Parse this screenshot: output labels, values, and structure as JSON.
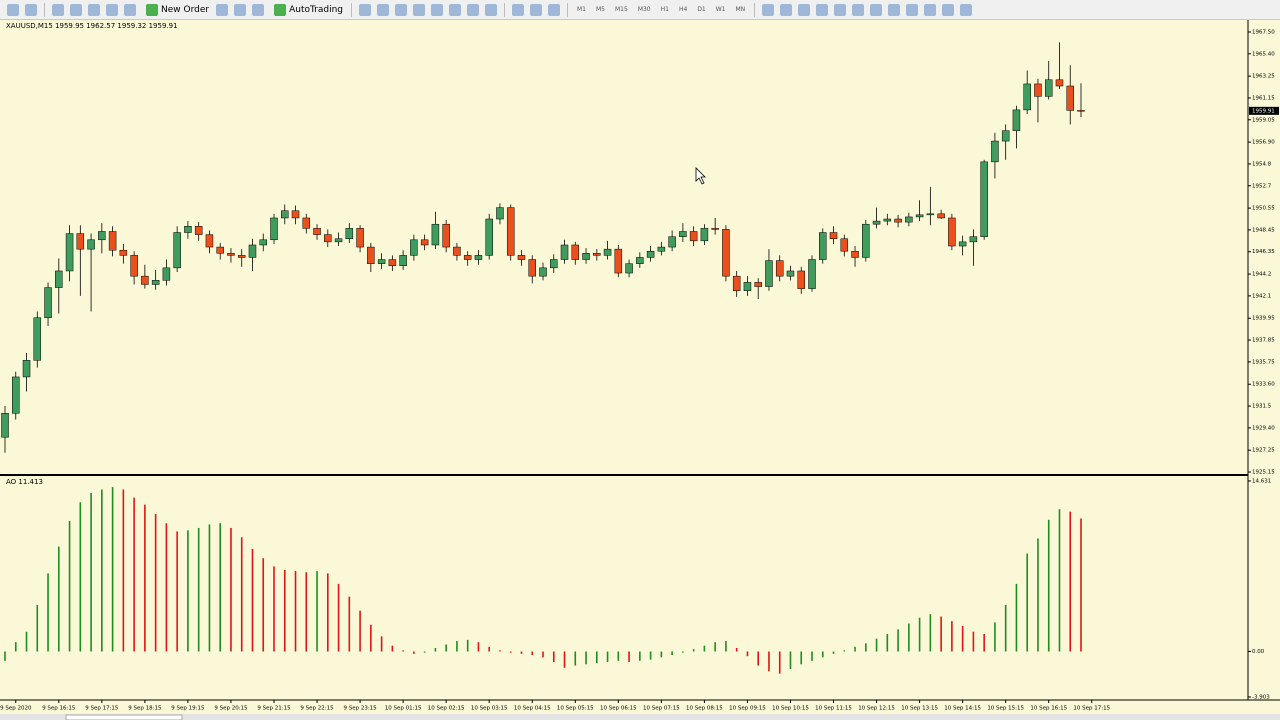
{
  "toolbar": {
    "buttons": [
      "New Order",
      "AutoTrading"
    ],
    "timeframes": [
      "M1",
      "M5",
      "M15",
      "M30",
      "H1",
      "H4",
      "D1",
      "W1",
      "MN"
    ]
  },
  "time_labels": [
    "9 Sep 2020",
    "9 Sep 16:15",
    "9 Sep 17:15",
    "9 Sep 18:15",
    "9 Sep 19:15",
    "9 Sep 20:15",
    "9 Sep 21:15",
    "9 Sep 22:15",
    "9 Sep 23:15",
    "10 Sep 01:15",
    "10 Sep 02:15",
    "10 Sep 03:15",
    "10 Sep 04:15",
    "10 Sep 05:15",
    "10 Sep 06:15",
    "10 Sep 07:15",
    "10 Sep 08:15",
    "10 Sep 09:15",
    "10 Sep 10:15",
    "10 Sep 11:15",
    "10 Sep 12:15",
    "10 Sep 13:15",
    "10 Sep 14:15",
    "10 Sep 15:15",
    "10 Sep 16:15",
    "10 Sep 17:15"
  ],
  "chart_data": [
    {
      "type": "candlestick",
      "title": "XAUUSD,M15  1959.95 1962.57 1959.32 1959.91",
      "up_color": "#3f9b5e",
      "down_color": "#ea4f1c",
      "ylim": [
        1924.96,
        1968.46
      ],
      "yticks": [
        {
          "value": 1967.5,
          "label": "1967.50"
        },
        {
          "value": 1965.4,
          "label": "1965.40"
        },
        1963.25,
        1961.15,
        1959.05,
        {
          "value": 1956.9,
          "label": "1956.90"
        },
        1954.8,
        1952.7,
        1950.55,
        1948.45,
        1946.35,
        1944.2,
        1942.1,
        1939.95,
        1937.85,
        1935.75,
        {
          "value": 1933.6,
          "label": "1933.60"
        },
        1931.5,
        {
          "value": 1929.4,
          "label": "1929.40"
        },
        1927.25,
        1925.15
      ],
      "ohlc": [
        [
          1928.5,
          1931.5,
          1927.0,
          1930.8
        ],
        [
          1930.8,
          1934.8,
          1930.2,
          1934.3
        ],
        [
          1934.3,
          1936.6,
          1932.9,
          1935.9
        ],
        [
          1935.9,
          1940.6,
          1935.2,
          1940.0
        ],
        [
          1940.0,
          1943.4,
          1939.2,
          1942.9
        ],
        [
          1942.9,
          1945.7,
          1940.4,
          1944.5
        ],
        [
          1944.5,
          1948.9,
          1943.5,
          1948.1
        ],
        [
          1948.1,
          1948.9,
          1942.1,
          1946.6
        ],
        [
          1946.6,
          1948.1,
          1940.6,
          1947.5
        ],
        [
          1947.5,
          1949.1,
          1946.2,
          1948.3
        ],
        [
          1948.3,
          1948.8,
          1945.9,
          1946.5
        ],
        [
          1946.5,
          1947.1,
          1945.2,
          1946.0
        ],
        [
          1946.0,
          1946.4,
          1943.2,
          1944.0
        ],
        [
          1944.0,
          1945.1,
          1942.8,
          1943.2
        ],
        [
          1943.2,
          1944.6,
          1942.7,
          1943.6
        ],
        [
          1943.6,
          1945.6,
          1943.1,
          1944.8
        ],
        [
          1944.8,
          1948.8,
          1944.4,
          1948.2
        ],
        [
          1948.2,
          1949.3,
          1947.6,
          1948.8
        ],
        [
          1948.8,
          1949.2,
          1947.4,
          1948.0
        ],
        [
          1948.0,
          1948.4,
          1946.2,
          1946.8
        ],
        [
          1946.8,
          1947.2,
          1945.6,
          1946.2
        ],
        [
          1946.2,
          1946.7,
          1945.3,
          1946.0
        ],
        [
          1946.0,
          1946.6,
          1944.9,
          1945.8
        ],
        [
          1945.8,
          1947.6,
          1944.5,
          1947.0
        ],
        [
          1947.0,
          1948.1,
          1946.4,
          1947.5
        ],
        [
          1947.5,
          1950.0,
          1947.1,
          1949.6
        ],
        [
          1949.6,
          1950.9,
          1949.0,
          1950.3
        ],
        [
          1950.3,
          1950.8,
          1949.0,
          1949.6
        ],
        [
          1949.6,
          1950.0,
          1948.1,
          1948.6
        ],
        [
          1948.6,
          1949.0,
          1947.5,
          1948.0
        ],
        [
          1948.0,
          1948.5,
          1946.8,
          1947.3
        ],
        [
          1947.3,
          1948.2,
          1946.9,
          1947.6
        ],
        [
          1947.6,
          1949.1,
          1947.2,
          1948.6
        ],
        [
          1948.6,
          1948.9,
          1946.3,
          1946.8
        ],
        [
          1946.8,
          1947.2,
          1944.4,
          1945.2
        ],
        [
          1945.2,
          1946.2,
          1944.7,
          1945.6
        ],
        [
          1945.6,
          1946.0,
          1944.5,
          1945.0
        ],
        [
          1945.0,
          1946.5,
          1944.6,
          1946.0
        ],
        [
          1946.0,
          1948.0,
          1945.5,
          1947.5
        ],
        [
          1947.5,
          1948.0,
          1946.5,
          1947.0
        ],
        [
          1947.0,
          1950.2,
          1946.6,
          1949.0
        ],
        [
          1949.0,
          1949.4,
          1946.3,
          1946.8
        ],
        [
          1946.8,
          1947.2,
          1945.5,
          1946.0
        ],
        [
          1946.0,
          1946.4,
          1945.0,
          1945.6
        ],
        [
          1945.6,
          1946.5,
          1945.1,
          1946.0
        ],
        [
          1946.0,
          1950.0,
          1945.6,
          1949.5
        ],
        [
          1949.5,
          1951.0,
          1949.0,
          1950.6
        ],
        [
          1950.6,
          1950.9,
          1945.5,
          1946.0
        ],
        [
          1946.0,
          1946.5,
          1945.0,
          1945.6
        ],
        [
          1945.6,
          1946.0,
          1943.3,
          1944.0
        ],
        [
          1944.0,
          1945.3,
          1943.6,
          1944.8
        ],
        [
          1944.8,
          1946.1,
          1944.3,
          1945.6
        ],
        [
          1945.6,
          1947.5,
          1945.2,
          1947.0
        ],
        [
          1947.0,
          1947.3,
          1945.1,
          1945.6
        ],
        [
          1945.6,
          1946.7,
          1945.2,
          1946.2
        ],
        [
          1946.2,
          1946.6,
          1945.5,
          1946.0
        ],
        [
          1946.0,
          1947.4,
          1945.6,
          1946.6
        ],
        [
          1946.6,
          1947.0,
          1943.9,
          1944.3
        ],
        [
          1944.3,
          1945.6,
          1943.9,
          1945.2
        ],
        [
          1945.2,
          1946.3,
          1944.8,
          1945.8
        ],
        [
          1945.8,
          1946.9,
          1945.4,
          1946.4
        ],
        [
          1946.4,
          1947.3,
          1946.0,
          1946.8
        ],
        [
          1946.8,
          1948.4,
          1946.4,
          1947.8
        ],
        [
          1947.8,
          1949.1,
          1947.3,
          1948.3
        ],
        [
          1948.3,
          1948.8,
          1946.9,
          1947.4
        ],
        [
          1947.4,
          1949.0,
          1947.0,
          1948.6
        ],
        [
          1948.6,
          1949.6,
          1948.0,
          1948.5
        ],
        [
          1948.5,
          1948.9,
          1943.5,
          1944.0
        ],
        [
          1944.0,
          1944.5,
          1942.0,
          1942.6
        ],
        [
          1942.6,
          1944.0,
          1942.1,
          1943.4
        ],
        [
          1943.4,
          1943.8,
          1941.8,
          1943.0
        ],
        [
          1943.0,
          1946.6,
          1942.6,
          1945.5
        ],
        [
          1945.5,
          1946.0,
          1943.5,
          1944.0
        ],
        [
          1944.0,
          1945.0,
          1943.6,
          1944.5
        ],
        [
          1944.5,
          1944.9,
          1942.3,
          1942.8
        ],
        [
          1942.8,
          1946.0,
          1942.5,
          1945.6
        ],
        [
          1945.6,
          1948.6,
          1945.2,
          1948.2
        ],
        [
          1948.2,
          1948.8,
          1947.1,
          1947.6
        ],
        [
          1947.6,
          1948.0,
          1945.9,
          1946.4
        ],
        [
          1946.4,
          1946.9,
          1944.9,
          1945.8
        ],
        [
          1945.8,
          1949.4,
          1945.4,
          1949.0
        ],
        [
          1949.0,
          1950.6,
          1948.6,
          1949.3
        ],
        [
          1949.3,
          1950.0,
          1948.9,
          1949.5
        ],
        [
          1949.5,
          1949.9,
          1948.7,
          1949.2
        ],
        [
          1949.2,
          1950.1,
          1948.8,
          1949.7
        ],
        [
          1949.7,
          1951.3,
          1949.3,
          1949.9
        ],
        [
          1949.9,
          1952.6,
          1948.9,
          1950.0
        ],
        [
          1950.0,
          1950.4,
          1949.5,
          1949.6
        ],
        [
          1949.6,
          1950.0,
          1946.5,
          1946.9
        ],
        [
          1946.9,
          1947.9,
          1946.0,
          1947.3
        ],
        [
          1947.3,
          1948.5,
          1945.0,
          1947.8
        ],
        [
          1947.8,
          1955.2,
          1947.5,
          1955.0
        ],
        [
          1955.0,
          1957.8,
          1953.4,
          1957.0
        ],
        [
          1957.0,
          1958.6,
          1955.2,
          1958.0
        ],
        [
          1958.0,
          1960.4,
          1956.3,
          1960.0
        ],
        [
          1960.0,
          1963.8,
          1959.6,
          1962.5
        ],
        [
          1962.5,
          1963.0,
          1958.8,
          1961.3
        ],
        [
          1961.3,
          1964.7,
          1961.0,
          1962.9
        ],
        [
          1962.9,
          1966.5,
          1962.0,
          1962.3
        ],
        [
          1962.3,
          1964.3,
          1958.6,
          1959.95
        ],
        [
          1959.95,
          1962.57,
          1959.32,
          1959.91
        ]
      ]
    },
    {
      "type": "histogram",
      "title": "AO 11.413",
      "up_color": "#1e8c1e",
      "down_color": "#e01414",
      "ylim": [
        -4.16,
        14.97
      ],
      "yticks": [
        14.631,
        {
          "value": 0,
          "label": "0.00"
        },
        -3.903
      ],
      "values": [
        -0.8,
        0.8,
        1.7,
        4.0,
        6.7,
        9.0,
        11.2,
        12.8,
        13.6,
        13.9,
        14.1,
        13.9,
        13.2,
        12.6,
        11.8,
        11.0,
        10.3,
        10.4,
        10.6,
        10.9,
        11.0,
        10.6,
        9.8,
        8.8,
        8.0,
        7.3,
        7.0,
        6.9,
        6.8,
        6.9,
        6.7,
        5.8,
        4.7,
        3.5,
        2.3,
        1.3,
        0.5,
        0.1,
        -0.2,
        -0.1,
        0.3,
        0.6,
        0.9,
        1.0,
        0.8,
        0.4,
        0.1,
        -0.1,
        -0.2,
        -0.3,
        -0.5,
        -0.9,
        -1.4,
        -1.2,
        -1.1,
        -1.0,
        -0.9,
        -0.8,
        -0.9,
        -0.8,
        -0.7,
        -0.5,
        -0.3,
        -0.1,
        0.2,
        0.5,
        0.8,
        0.9,
        0.3,
        -0.4,
        -1.2,
        -1.7,
        -1.9,
        -1.5,
        -1.1,
        -0.8,
        -0.5,
        -0.2,
        0.1,
        0.4,
        0.7,
        1.1,
        1.5,
        1.9,
        2.4,
        2.9,
        3.2,
        3.0,
        2.6,
        2.2,
        1.7,
        1.5,
        2.5,
        4.0,
        5.8,
        8.4,
        9.7,
        11.3,
        12.2,
        12.0,
        11.413
      ]
    }
  ]
}
